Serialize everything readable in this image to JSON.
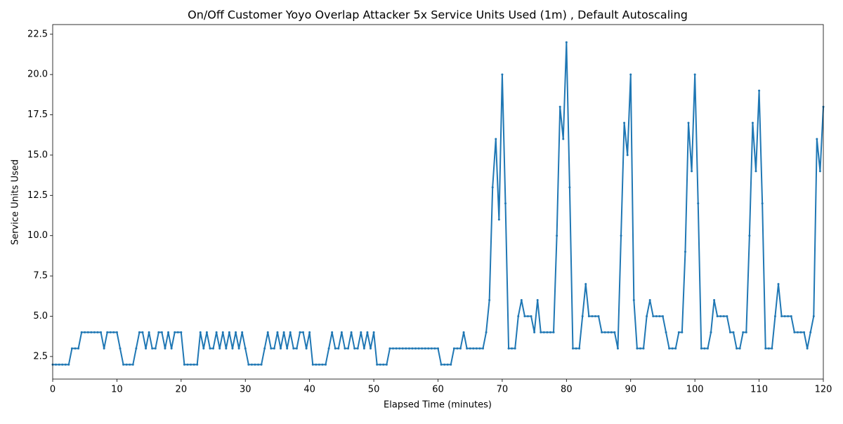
{
  "chart_data": {
    "type": "line",
    "title": "On/Off Customer Yoyo Overlap Attacker 5x Service Units Used (1m) , Default Autoscaling",
    "x_label": "Elapsed Time (minutes)",
    "y_label": "Service Units Used",
    "xlim": [
      0,
      120
    ],
    "ylim": [
      1.1,
      23.1
    ],
    "xticks": [
      0,
      10,
      20,
      30,
      40,
      50,
      60,
      70,
      80,
      90,
      100,
      110,
      120
    ],
    "yticks": [
      2.5,
      {
        "value": 5,
        "label": "5.0"
      },
      7.5,
      {
        "value": 10,
        "label": "10.0"
      },
      12.5,
      {
        "value": 15,
        "label": "15.0"
      },
      17.5,
      {
        "value": 20,
        "label": "20.0"
      },
      22.5
    ],
    "series": [
      {
        "color": "#1f77b4",
        "x": [
          0,
          0.5,
          1,
          1.5,
          2,
          2.5,
          3,
          3.5,
          4,
          4.5,
          5,
          5.5,
          6,
          6.5,
          7,
          7.5,
          8,
          8.5,
          9,
          9.5,
          10,
          10.5,
          11,
          11.5,
          12,
          12.5,
          13,
          13.5,
          14,
          14.5,
          15,
          15.5,
          16,
          16.5,
          17,
          17.5,
          18,
          18.5,
          19,
          19.5,
          20,
          20.5,
          21,
          21.5,
          22,
          22.5,
          23,
          23.5,
          24,
          24.5,
          25,
          25.5,
          26,
          26.5,
          27,
          27.5,
          28,
          28.5,
          29,
          29.5,
          30,
          30.5,
          31,
          31.5,
          32,
          32.5,
          33,
          33.5,
          34,
          34.5,
          35,
          35.5,
          36,
          36.5,
          37,
          37.5,
          38,
          38.5,
          39,
          39.5,
          40,
          40.5,
          41,
          41.5,
          42,
          42.5,
          43,
          43.5,
          44,
          44.5,
          45,
          45.5,
          46,
          46.5,
          47,
          47.5,
          48,
          48.5,
          49,
          49.5,
          50,
          50.5,
          51,
          51.5,
          52,
          52.5,
          53,
          53.5,
          54,
          54.5,
          55,
          55.5,
          56,
          56.5,
          57,
          57.5,
          58,
          58.5,
          59,
          59.5,
          60,
          60.5,
          61,
          61.5,
          62,
          62.5,
          63,
          63.5,
          64,
          64.5,
          65,
          65.5,
          66,
          66.5,
          67,
          67.5,
          68,
          68.5,
          69,
          69.5,
          70,
          70.5,
          71,
          71.5,
          72,
          72.5,
          73,
          73.5,
          74,
          74.5,
          75,
          75.5,
          76,
          76.5,
          77,
          77.5,
          78,
          78.5,
          79,
          79.5,
          80,
          80.5,
          81,
          81.5,
          82,
          82.5,
          83,
          83.5,
          84,
          84.5,
          85,
          85.5,
          86,
          86.5,
          87,
          87.5,
          88,
          88.5,
          89,
          89.5,
          90,
          90.5,
          91,
          91.5,
          92,
          92.5,
          93,
          93.5,
          94,
          94.5,
          95,
          95.5,
          96,
          96.5,
          97,
          97.5,
          98,
          98.5,
          99,
          99.5,
          100,
          100.5,
          101,
          101.5,
          102,
          102.5,
          103,
          103.5,
          104,
          104.5,
          105,
          105.5,
          106,
          106.5,
          107,
          107.5,
          108,
          108.5,
          109,
          109.5,
          110,
          110.5,
          111,
          111.5,
          112,
          112.5,
          113,
          113.5,
          114,
          114.5,
          115,
          115.5,
          116,
          116.5,
          117,
          117.5,
          118,
          118.5,
          119,
          119.5,
          120
        ],
        "values": [
          2,
          2,
          2,
          2,
          2,
          2,
          3,
          3,
          3,
          4,
          4,
          4,
          4,
          4,
          4,
          4,
          3,
          4,
          4,
          4,
          4,
          3,
          2,
          2,
          2,
          2,
          3,
          4,
          4,
          3,
          4,
          3,
          3,
          4,
          4,
          3,
          4,
          3,
          4,
          4,
          4,
          2,
          2,
          2,
          2,
          2,
          4,
          3,
          4,
          3,
          3,
          4,
          3,
          4,
          3,
          4,
          3,
          4,
          3,
          4,
          3,
          2,
          2,
          2,
          2,
          2,
          3,
          4,
          3,
          3,
          4,
          3,
          4,
          3,
          4,
          3,
          3,
          4,
          4,
          3,
          4,
          2,
          2,
          2,
          2,
          2,
          3,
          4,
          3,
          3,
          4,
          3,
          3,
          4,
          3,
          3,
          4,
          3,
          4,
          3,
          4,
          2,
          2,
          2,
          2,
          3,
          3,
          3,
          3,
          3,
          3,
          3,
          3,
          3,
          3,
          3,
          3,
          3,
          3,
          3,
          3,
          2,
          2,
          2,
          2,
          3,
          3,
          3,
          4,
          3,
          3,
          3,
          3,
          3,
          3,
          4,
          6,
          13,
          16,
          11,
          20,
          12,
          3,
          3,
          3,
          5,
          6,
          5,
          5,
          5,
          4,
          6,
          4,
          4,
          4,
          4,
          4,
          10,
          18,
          16,
          22,
          13,
          3,
          3,
          3,
          5,
          7,
          5,
          5,
          5,
          5,
          4,
          4,
          4,
          4,
          4,
          3,
          10,
          17,
          15,
          20,
          6,
          3,
          3,
          3,
          5,
          6,
          5,
          5,
          5,
          5,
          4,
          3,
          3,
          3,
          4,
          4,
          9,
          17,
          14,
          20,
          12,
          3,
          3,
          3,
          4,
          6,
          5,
          5,
          5,
          5,
          4,
          4,
          3,
          3,
          4,
          4,
          10,
          17,
          14,
          19,
          12,
          3,
          3,
          3,
          5,
          7,
          5,
          5,
          5,
          5,
          4,
          4,
          4,
          4,
          3,
          4,
          5,
          16,
          14,
          18
        ]
      }
    ]
  }
}
